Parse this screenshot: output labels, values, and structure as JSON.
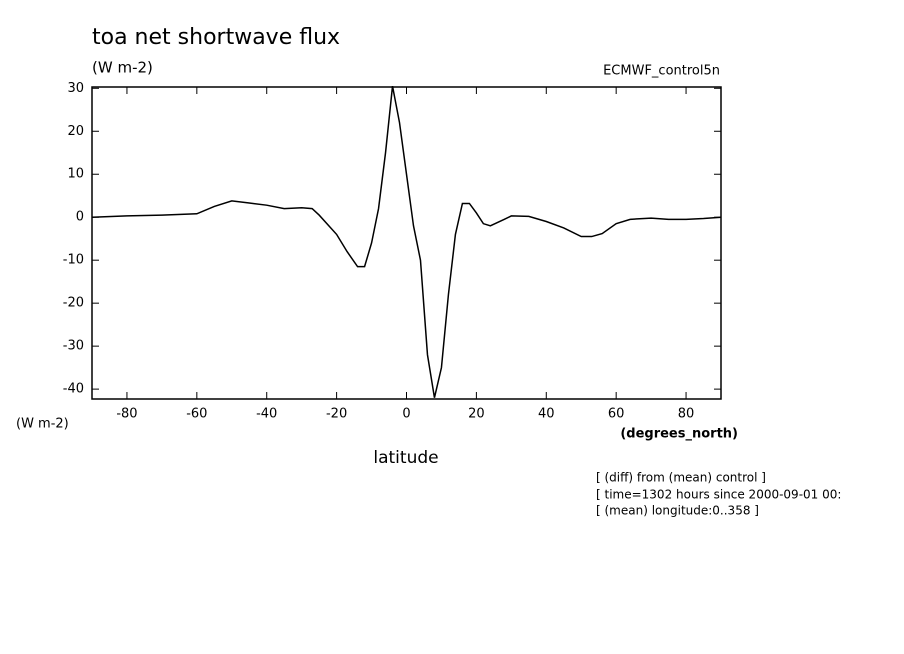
{
  "chart_data": {
    "type": "line",
    "title": "toa net shortwave flux",
    "units": "(W m-2)",
    "dataset": "ECMWF_control5n",
    "y_axis_label": "(W m-2)",
    "x_axis_units": "(degrees_north)",
    "x_axis_label": "latitude",
    "notes": [
      "[ (diff) from (mean) control ]",
      "[ time=1302 hours since 2000-09-01 00:",
      "[ (mean) longitude:0..358 ]"
    ],
    "x": [
      -90,
      -80,
      -70,
      -60,
      -55,
      -50,
      -45,
      -40,
      -35,
      -30,
      -27,
      -25,
      -20,
      -17,
      -14,
      -12,
      -10,
      -8,
      -6,
      -4,
      -2,
      0,
      2,
      4,
      6,
      8,
      10,
      12,
      14,
      16,
      18,
      20,
      22,
      24,
      28,
      30,
      35,
      40,
      45,
      50,
      53,
      56,
      60,
      64,
      70,
      75,
      80,
      85,
      90
    ],
    "series": [
      {
        "color": "#000000",
        "values": [
          0,
          0.3,
          0.5,
          0.8,
          2.5,
          3.8,
          3.3,
          2.8,
          2.0,
          2.2,
          2.0,
          0.5,
          -4,
          -8,
          -11.5,
          -11.5,
          -6,
          2,
          15,
          30.5,
          22,
          10,
          -2,
          -10,
          -32,
          -42,
          -35,
          -18,
          -4,
          3.2,
          3.2,
          1,
          -1.5,
          -2,
          -0.5,
          0.3,
          0.2,
          -1,
          -2.5,
          -4.5,
          -4.5,
          -3.8,
          -1.5,
          -0.5,
          -0.2,
          -0.5,
          -0.5,
          -0.3,
          0
        ]
      }
    ],
    "xlim": [
      -90,
      90
    ],
    "xticks": [
      -80,
      -60,
      -40,
      -20,
      0,
      20,
      40,
      60,
      80
    ],
    "ylim": [
      -42.3,
      30.3
    ],
    "yticks": [
      -40,
      -30,
      -20,
      -10,
      0,
      10,
      20,
      30
    ]
  }
}
